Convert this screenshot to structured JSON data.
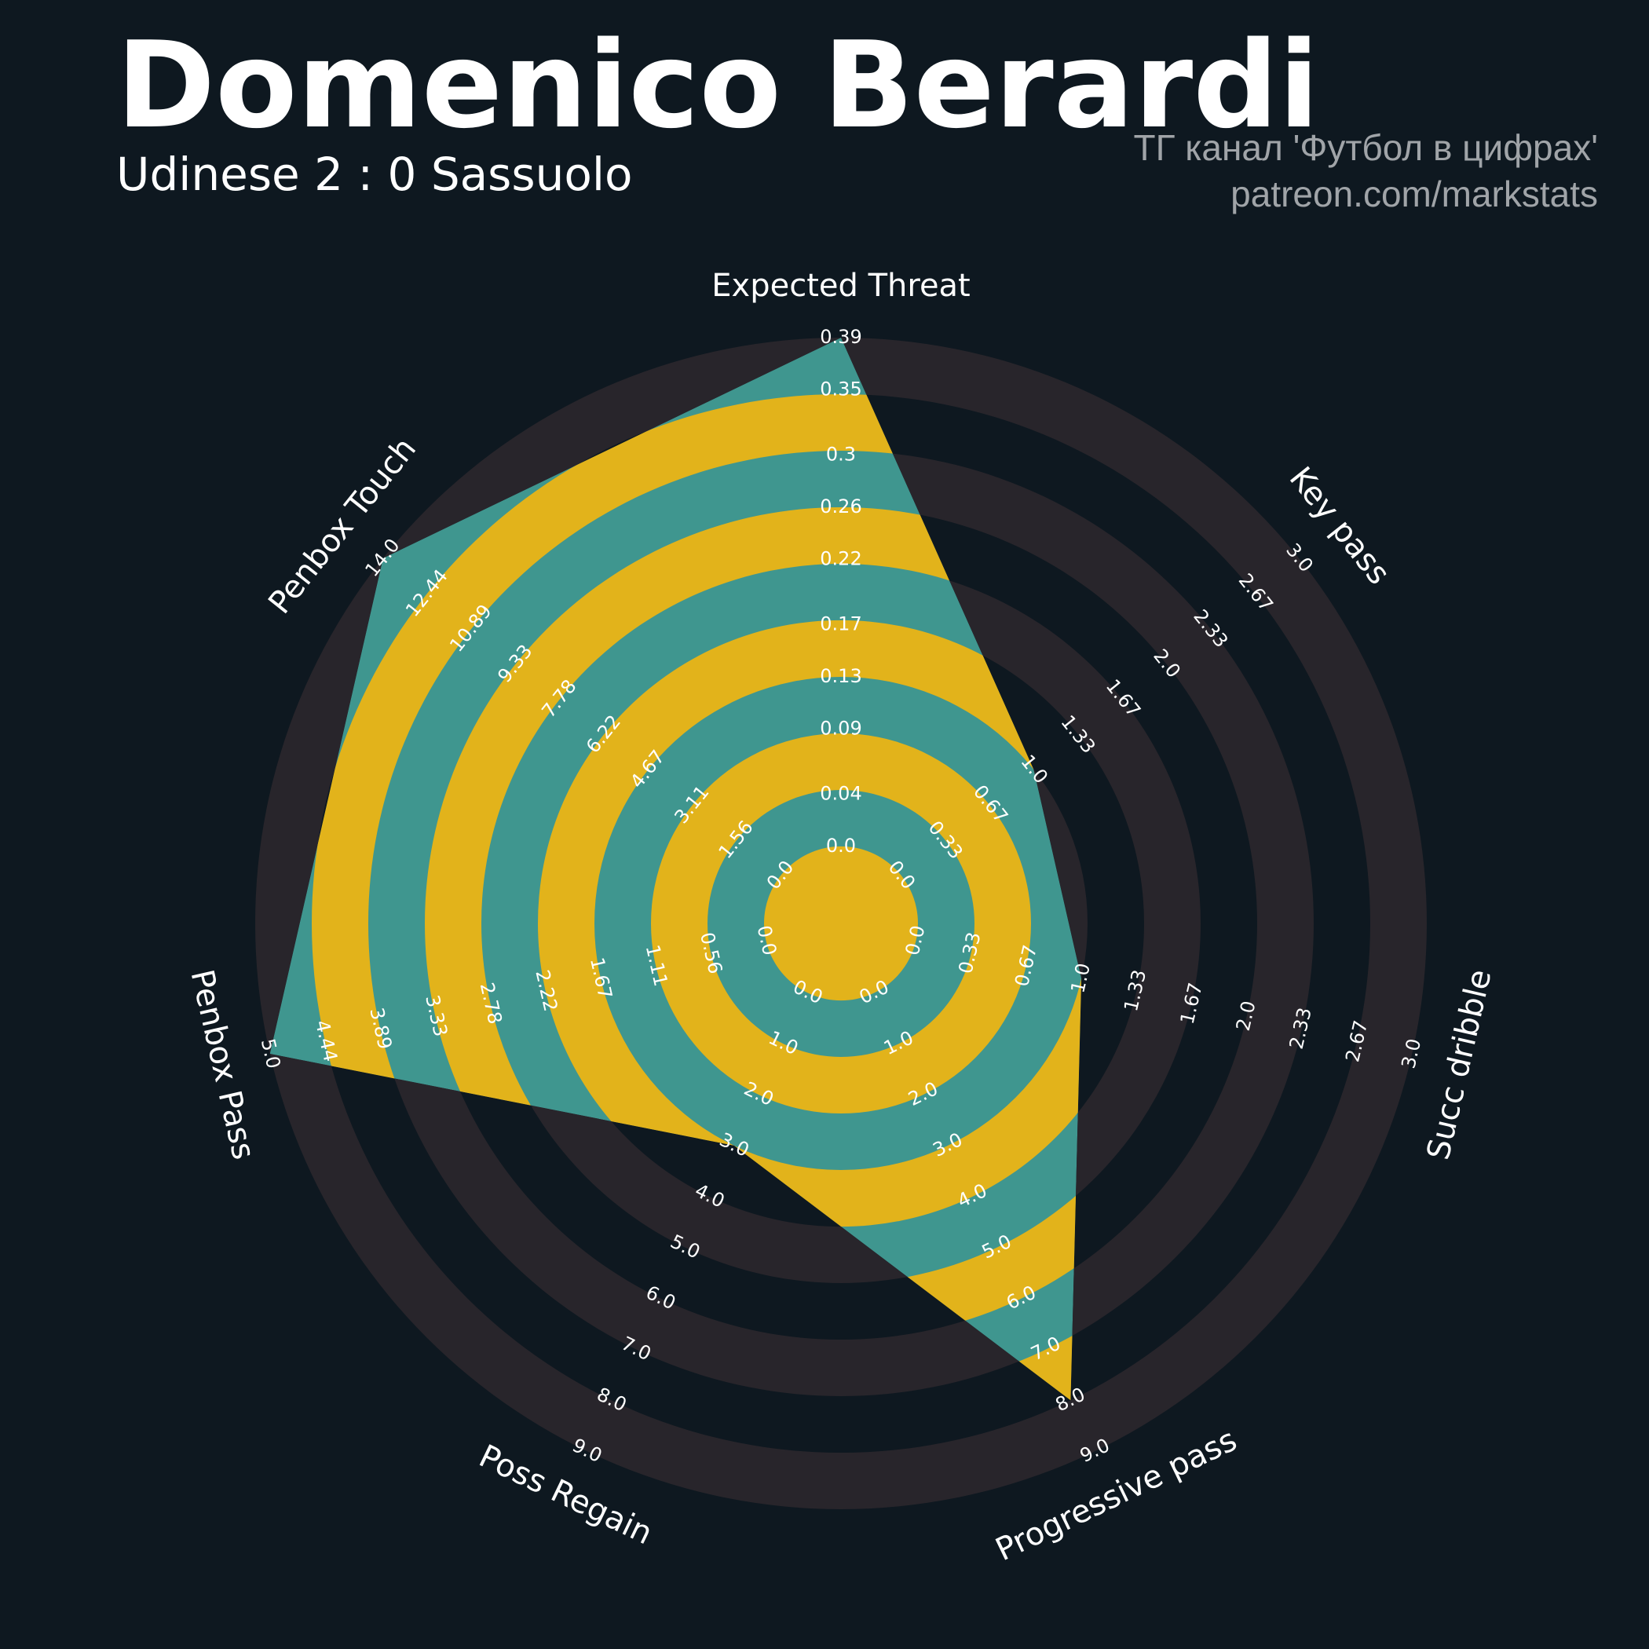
{
  "chart_data": {
    "type": "radar",
    "title": "Domenico Berardi",
    "subtitle": "Udinese 2 : 0 Sassuolo",
    "credits": [
      "ТГ канал 'Футбол в цифрах'",
      "patreon.com/markstats"
    ],
    "colors": {
      "background": "#0e1820",
      "ring": "#28252b",
      "fill": "#3f968f",
      "alt_fill": "#e2b31b"
    },
    "axes": [
      {
        "label": "Expected Threat",
        "lim": [
          0,
          0.39
        ],
        "value": 0.39,
        "ticks": [
          {
            "value": 0,
            "label": "0.0"
          },
          0.04,
          0.09,
          0.13,
          0.17,
          0.22,
          0.26,
          0.3,
          0.35,
          0.39
        ]
      },
      {
        "label": "Key pass",
        "lim": [
          0,
          3
        ],
        "value": 1,
        "ticks": [
          {
            "value": 0,
            "label": "0.0"
          },
          0.33,
          0.67,
          {
            "value": 1,
            "label": "1.0"
          },
          1.33,
          1.67,
          {
            "value": 2,
            "label": "2.0"
          },
          2.33,
          2.67,
          {
            "value": 3,
            "label": "3.0"
          }
        ]
      },
      {
        "label": "Succ dribble",
        "lim": [
          0,
          3
        ],
        "value": 1,
        "ticks": [
          {
            "value": 0,
            "label": "0.0"
          },
          0.33,
          0.67,
          {
            "value": 1,
            "label": "1.0"
          },
          1.33,
          1.67,
          {
            "value": 2,
            "label": "2.0"
          },
          2.33,
          2.67,
          {
            "value": 3,
            "label": "3.0"
          }
        ]
      },
      {
        "label": "Progressive pass",
        "lim": [
          0,
          9
        ],
        "value": 8,
        "ticks": [
          {
            "value": 0,
            "label": "0.0"
          },
          {
            "value": 1,
            "label": "1.0"
          },
          {
            "value": 2,
            "label": "2.0"
          },
          {
            "value": 3,
            "label": "3.0"
          },
          {
            "value": 4,
            "label": "4.0"
          },
          {
            "value": 5,
            "label": "5.0"
          },
          {
            "value": 6,
            "label": "6.0"
          },
          {
            "value": 7,
            "label": "7.0"
          },
          {
            "value": 8,
            "label": "8.0"
          },
          {
            "value": 9,
            "label": "9.0"
          }
        ]
      },
      {
        "label": "Poss Regain",
        "lim": [
          0,
          9
        ],
        "value": 3,
        "ticks": [
          {
            "value": 0,
            "label": "0.0"
          },
          {
            "value": 1,
            "label": "1.0"
          },
          {
            "value": 2,
            "label": "2.0"
          },
          {
            "value": 3,
            "label": "3.0"
          },
          {
            "value": 4,
            "label": "4.0"
          },
          {
            "value": 5,
            "label": "5.0"
          },
          {
            "value": 6,
            "label": "6.0"
          },
          {
            "value": 7,
            "label": "7.0"
          },
          {
            "value": 8,
            "label": "8.0"
          },
          {
            "value": 9,
            "label": "9.0"
          }
        ]
      },
      {
        "label": "Penbox Pass",
        "lim": [
          0,
          5
        ],
        "value": 5,
        "ticks": [
          {
            "value": 0,
            "label": "0.0"
          },
          0.56,
          1.11,
          1.67,
          2.22,
          2.78,
          3.33,
          3.89,
          4.44,
          {
            "value": 5,
            "label": "5.0"
          }
        ]
      },
      {
        "label": "Penbox Touch",
        "lim": [
          0,
          14
        ],
        "value": 14,
        "ticks": [
          {
            "value": 0,
            "label": "0.0"
          },
          1.56,
          3.11,
          4.67,
          6.22,
          7.78,
          9.33,
          10.89,
          12.44,
          {
            "value": 14,
            "label": "14.0"
          }
        ]
      }
    ]
  }
}
